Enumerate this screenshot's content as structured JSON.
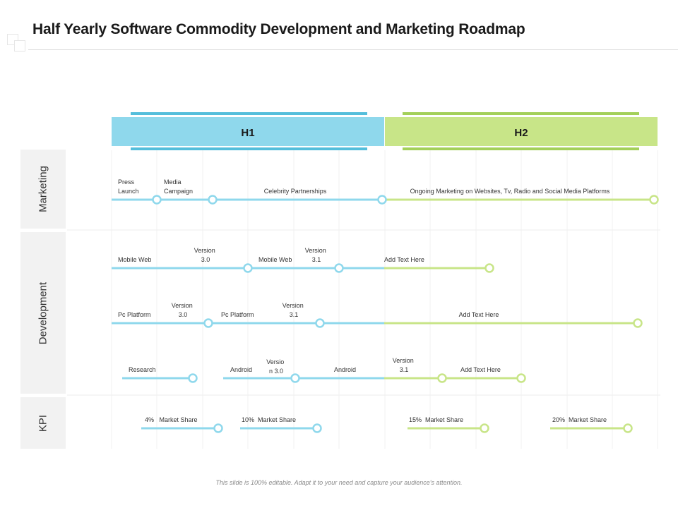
{
  "title": "Half Yearly Software Commodity Development and Marketing Roadmap",
  "footer": "This slide is 100% editable. Adapt it to your need and capture your audience's attention.",
  "colors": {
    "h1": "#8fd8ec",
    "h1_dark": "#54bedb",
    "h2": "#c8e588",
    "h2_dark": "#a3d05a",
    "row_bg": "#f2f2f2"
  },
  "headers": {
    "h1": "H1",
    "h2": "H2"
  },
  "rows": {
    "marketing": "Marketing",
    "development": "Development",
    "kpi": "KPI"
  },
  "labels": {
    "m_press": [
      "Press",
      "Launch"
    ],
    "m_media": [
      "Media",
      "Campaign"
    ],
    "m_celebrity": "Celebrity Partnerships",
    "m_ongoing": "Ongoing Marketing on Websites, Tv, Radio and Social Media Platforms",
    "d1_mobile_web_1": "Mobile Web",
    "d1_version_30": [
      "Version",
      "3.0"
    ],
    "d1_mobile_web_2": "Mobile Web",
    "d1_version_31": [
      "Version",
      "3.1"
    ],
    "d1_add_text": "Add Text Here",
    "d2_pc_platform_1": "Pc Platform",
    "d2_version_30": [
      "Version",
      "3.0"
    ],
    "d2_pc_platform_2": "Pc Platform",
    "d2_version_31": [
      "Version",
      "3.1"
    ],
    "d2_add_text": "Add Text Here",
    "d3_research": "Research",
    "d3_android_1": "Android",
    "d3_versio_30": [
      "Versio",
      "n 3.0"
    ],
    "d3_android_2": "Android",
    "d3_version_31": [
      "Version",
      "3.1"
    ],
    "d3_add_text": "Add Text Here",
    "k_4": "4%   Market Share",
    "k_10": "10%  Market Share",
    "k_15": "15%  Market Share",
    "k_20": "20%  Market Share"
  }
}
